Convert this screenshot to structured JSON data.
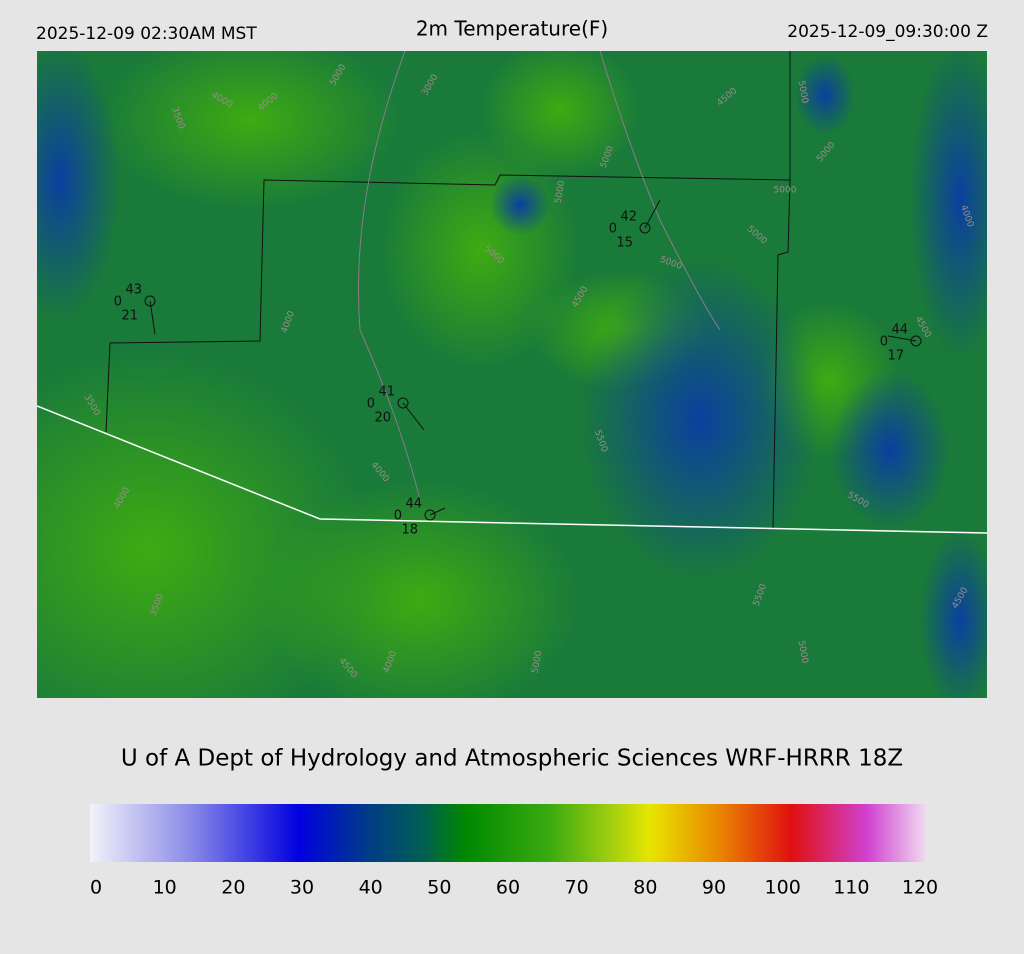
{
  "header": {
    "left": "2025-12-09 02:30AM MST",
    "title": "2m Temperature(F)",
    "right": "2025-12-09_09:30:00 Z"
  },
  "stations": [
    {
      "temperature": "43",
      "wind": "0",
      "dewpoint": "21"
    },
    {
      "temperature": "41",
      "wind": "0",
      "dewpoint": "20"
    },
    {
      "temperature": "44",
      "wind": "0",
      "dewpoint": "18"
    },
    {
      "temperature": "42",
      "wind": "0",
      "dewpoint": "15"
    },
    {
      "temperature": "44",
      "wind": "0",
      "dewpoint": "17"
    }
  ],
  "contour_labels": [
    "5000",
    "3500",
    "4000",
    "4000",
    "3000",
    "4500",
    "5000",
    "5000",
    "5000",
    "5000",
    "5000",
    "5000",
    "5000",
    "5000",
    "4000",
    "4500",
    "4000",
    "4500",
    "5500",
    "4000",
    "5500",
    "3500",
    "5500",
    "5000",
    "4500",
    "4000",
    "4500",
    "5000",
    "3500",
    "4000"
  ],
  "footer": "U of A Dept of Hydrology and Atmospheric Sciences WRF-HRRR 18Z",
  "colorbar": {
    "lim": [
      0,
      120
    ],
    "ticks": [
      0,
      10,
      20,
      30,
      40,
      50,
      60,
      70,
      80,
      90,
      100,
      110,
      120
    ]
  }
}
